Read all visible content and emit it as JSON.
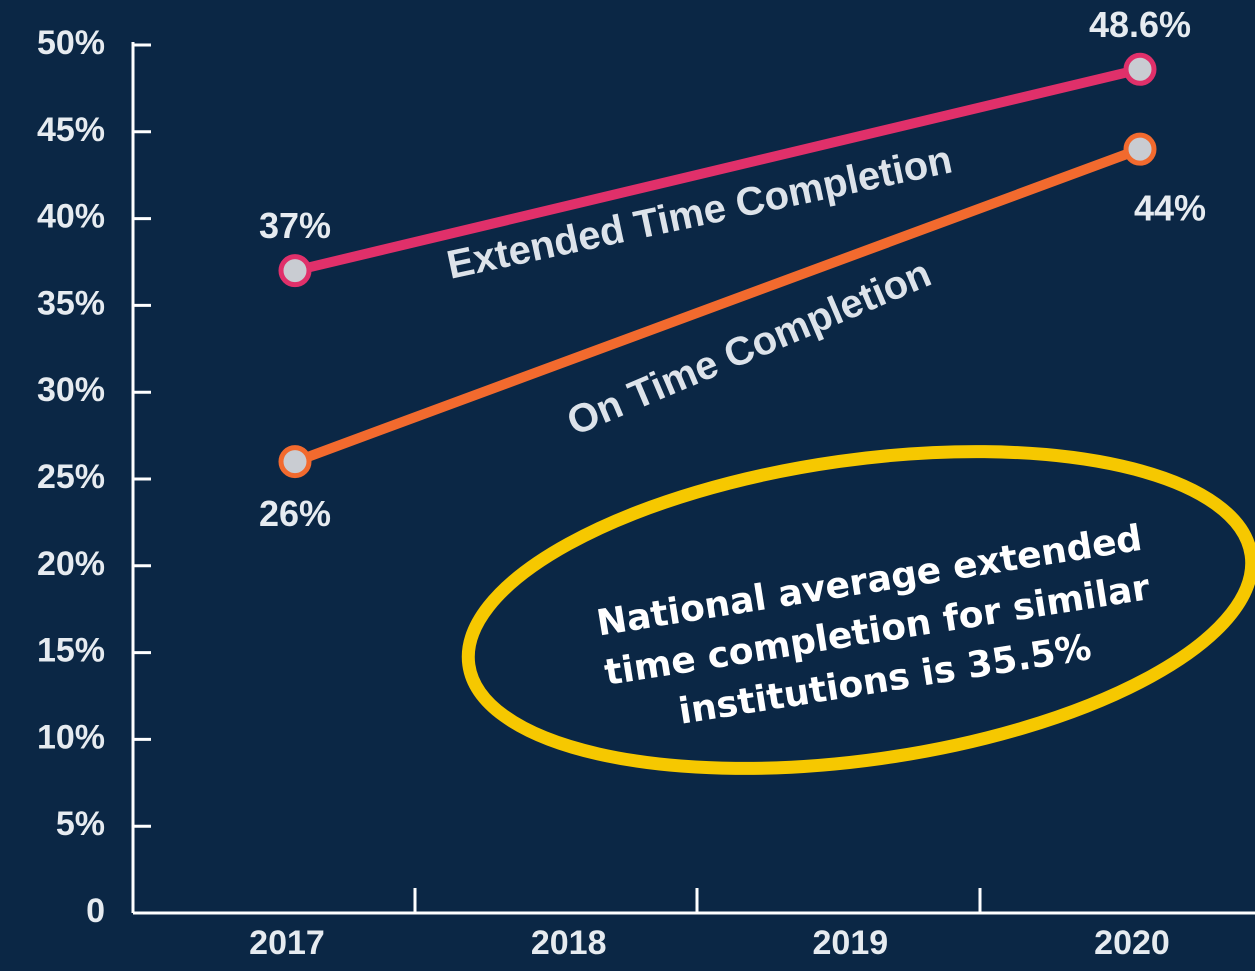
{
  "chart_data": {
    "type": "line",
    "x": [
      2017,
      2020
    ],
    "xlim": [
      2017,
      2020
    ],
    "xticks": [
      2017,
      2018,
      2019,
      2020
    ],
    "ylim": [
      0,
      50
    ],
    "yticks": [
      0,
      {
        "value": 5,
        "label": "5%"
      },
      {
        "value": 10,
        "label": "10%"
      },
      {
        "value": 15,
        "label": "15%"
      },
      {
        "value": 20,
        "label": "20%"
      },
      {
        "value": 25,
        "label": "25%"
      },
      {
        "value": 30,
        "label": "30%"
      },
      {
        "value": 35,
        "label": "35%"
      },
      {
        "value": 40,
        "label": "40%"
      },
      {
        "value": 45,
        "label": "45%"
      },
      {
        "value": 50,
        "label": "50%"
      }
    ],
    "series": [
      {
        "name": "Extended Time Completion",
        "color": "#e0306a",
        "values": [
          37,
          48.6
        ],
        "value_labels": [
          "37%",
          "48.6%"
        ]
      },
      {
        "name": "On Time Completion",
        "color": "#f26a2e",
        "values": [
          26,
          44
        ],
        "value_labels": [
          "26%",
          "44%"
        ]
      }
    ],
    "annotation": [
      "National average extended",
      "time completion for similar",
      "institutions is 35.5%"
    ]
  }
}
